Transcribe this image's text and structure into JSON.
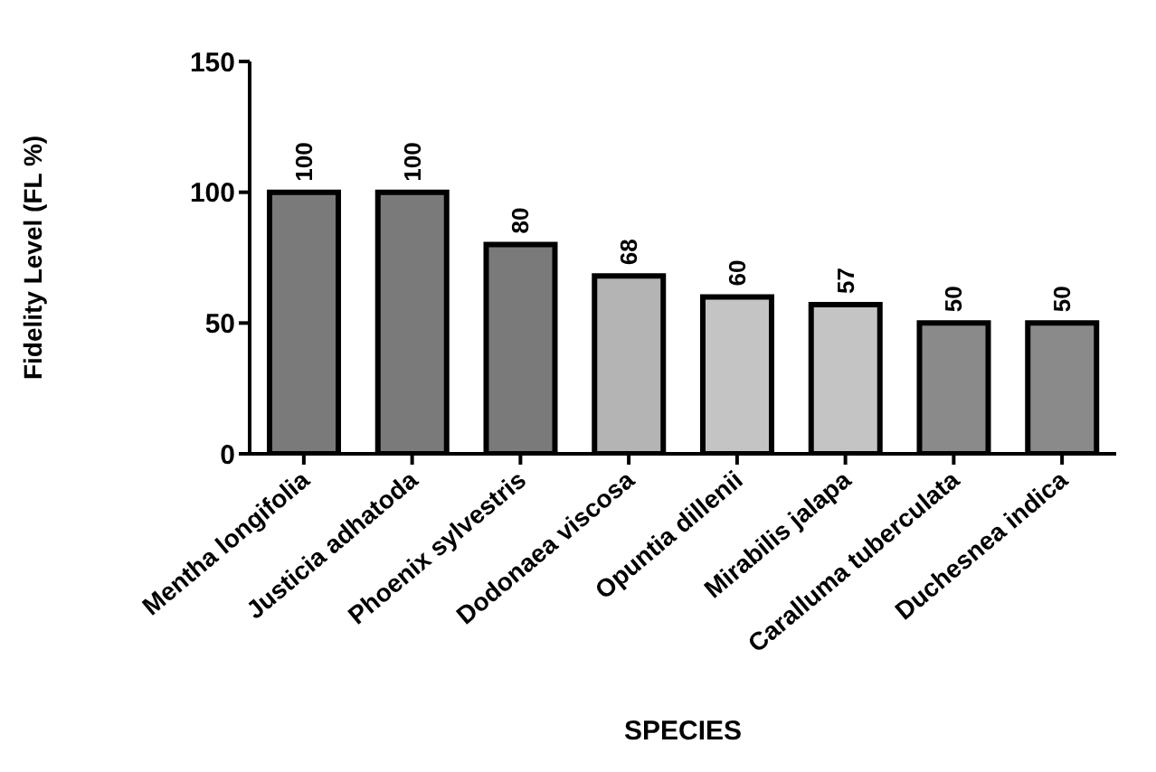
{
  "chart_data": {
    "type": "bar",
    "xlabel": "SPECIES",
    "ylabel": "Fidelity Level (FL %)",
    "categories": [
      "Mentha longifolia",
      "Justicia adhatoda",
      "Phoenix sylvestris",
      "Dodonaea viscosa",
      "Opuntia dillenii",
      "Mirabilis jalapa",
      "Caralluma tuberculata",
      "Duchesnea indica"
    ],
    "values": [
      100,
      100,
      80,
      68,
      60,
      57,
      50,
      50
    ],
    "colors": [
      "#7a7a7a",
      "#7a7a7a",
      "#7a7a7a",
      "#b4b4b4",
      "#c4c4c4",
      "#c4c4c4",
      "#8a8a8a",
      "#8a8a8a"
    ],
    "ylim": [
      0,
      150
    ],
    "yticks": [
      0,
      50,
      100,
      150
    ],
    "grid": false,
    "data_labels": true
  }
}
